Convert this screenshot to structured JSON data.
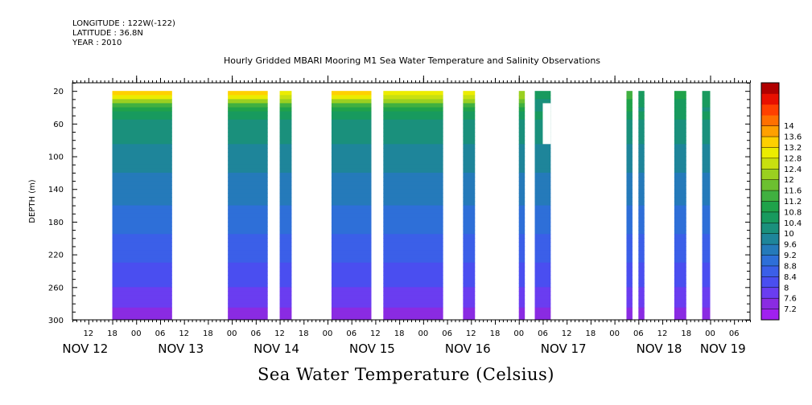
{
  "header": {
    "longitude": "LONGITUDE : 122W(-122)",
    "latitude": "LATITUDE : 36.8N",
    "year": "YEAR : 2010"
  },
  "chart_data": {
    "type": "heatmap",
    "title": "Hourly Gridded MBARI Mooring M1 Sea Water Temperature and Salinity Observations",
    "xlabel": "Sea Water Temperature (Celsius)",
    "ylabel": "DEPTH (m)",
    "x_unit": "hours since NOV 12 00:00",
    "xlim": [
      8,
      178
    ],
    "ylim": [
      300,
      10
    ],
    "y_ticks": [
      20,
      60,
      100,
      140,
      180,
      220,
      260,
      300
    ],
    "hour_tick_labels": [
      "12",
      "18",
      "00",
      "06",
      "12",
      "18",
      "00",
      "06",
      "12",
      "18",
      "00",
      "06",
      "12",
      "18",
      "00",
      "06",
      "12",
      "18",
      "00",
      "06",
      "12",
      "18",
      "00",
      "06",
      "12",
      "18",
      "00",
      "06",
      "12",
      "18",
      "00",
      "06"
    ],
    "day_labels": [
      {
        "label": "NOV 12",
        "hour": 12
      },
      {
        "label": "NOV 13",
        "hour": 36
      },
      {
        "label": "NOV 14",
        "hour": 60
      },
      {
        "label": "NOV 15",
        "hour": 84
      },
      {
        "label": "NOV 16",
        "hour": 108
      },
      {
        "label": "NOV 17",
        "hour": 132
      },
      {
        "label": "NOV 18",
        "hour": 156
      },
      {
        "label": "NOV 19",
        "hour": 172
      }
    ],
    "colorbar": {
      "levels": [
        7.2,
        7.6,
        8,
        8.4,
        8.8,
        9.2,
        9.6,
        10,
        10.4,
        10.8,
        11.2,
        11.6,
        12,
        12.4,
        12.8,
        13.2,
        13.6,
        14
      ],
      "labels": [
        "7.2",
        "7.6",
        "8",
        "8.4",
        "8.8",
        "9.2",
        "9.6",
        "10",
        "10.4",
        "10.8",
        "11.2",
        "11.6",
        "12",
        "12.4",
        "12.8",
        "13.2",
        "13.6",
        "14"
      ],
      "colors": [
        "#a020f0",
        "#8a2be2",
        "#6a3df0",
        "#4a4ef0",
        "#3b5fe8",
        "#2e6fd8",
        "#257aba",
        "#1e859a",
        "#1a907c",
        "#189a5e",
        "#1fa24a",
        "#40b040",
        "#6cc030",
        "#9ad020",
        "#c8e010",
        "#ecec00",
        "#ffd000",
        "#ffa000",
        "#ff7000",
        "#ff4000",
        "#e81000",
        "#b00000"
      ]
    },
    "observation_blocks": [
      {
        "start": 18,
        "end": 33,
        "surface_temp": 13.6
      },
      {
        "start": 47,
        "end": 57,
        "surface_temp": 13.6
      },
      {
        "start": 60,
        "end": 63,
        "surface_temp": 13.2
      },
      {
        "start": 73,
        "end": 83,
        "surface_temp": 13.6
      },
      {
        "start": 86,
        "end": 101,
        "surface_temp": 13.4
      },
      {
        "start": 106,
        "end": 109,
        "surface_temp": 13.2
      },
      {
        "start": 120,
        "end": 121.5,
        "surface_temp": 12.4
      },
      {
        "start": 124,
        "end": 128,
        "surface_temp": 10.6
      },
      {
        "start": 147,
        "end": 148.5,
        "surface_temp": 11.4
      },
      {
        "start": 150,
        "end": 151.5,
        "surface_temp": 10.8
      },
      {
        "start": 159,
        "end": 162,
        "surface_temp": 11.0
      },
      {
        "start": 166,
        "end": 168,
        "surface_temp": 10.8
      }
    ],
    "gaps": [
      {
        "start": 126,
        "end": 128,
        "depth_from": 35,
        "depth_to": 85
      }
    ],
    "temperature_profile": [
      {
        "depth": 20,
        "temp": 13.5
      },
      {
        "depth": 30,
        "temp": 12.6
      },
      {
        "depth": 40,
        "temp": 11.0
      },
      {
        "depth": 60,
        "temp": 10.3
      },
      {
        "depth": 100,
        "temp": 9.8
      },
      {
        "depth": 140,
        "temp": 9.4
      },
      {
        "depth": 180,
        "temp": 9.0
      },
      {
        "depth": 220,
        "temp": 8.5
      },
      {
        "depth": 260,
        "temp": 8.0
      },
      {
        "depth": 300,
        "temp": 7.4
      }
    ]
  }
}
